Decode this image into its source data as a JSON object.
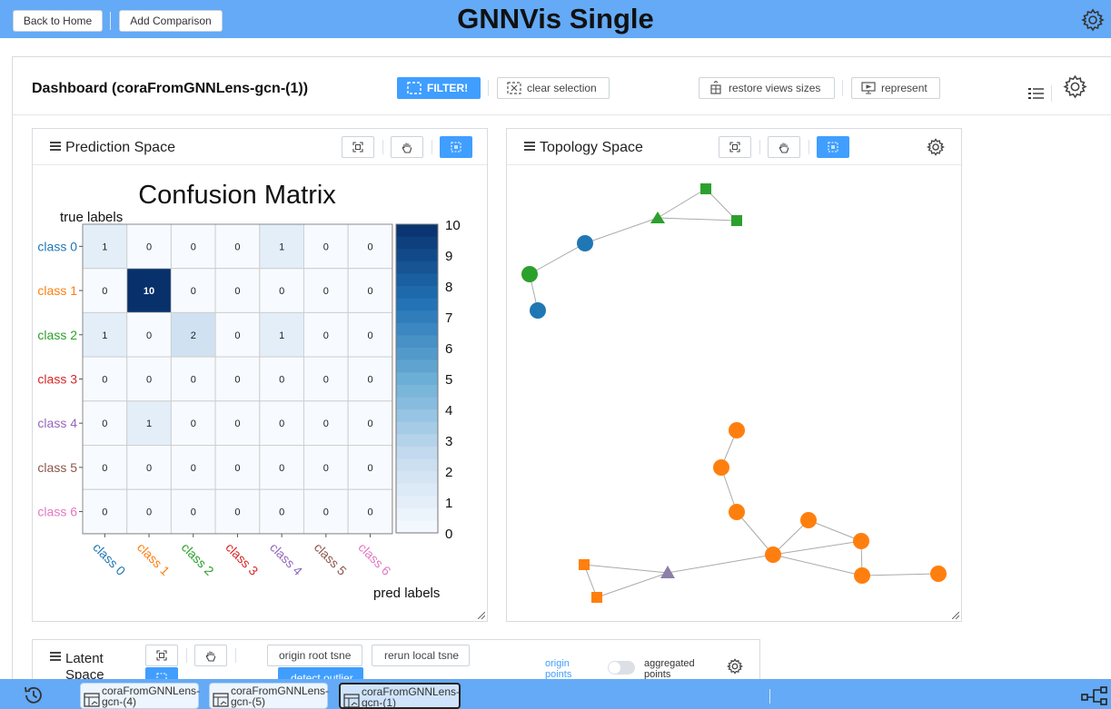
{
  "app": {
    "title": "GNNVis Single",
    "back_label": "Back to Home",
    "add_label": "Add Comparison"
  },
  "dashboard": {
    "title": "Dashboard (coraFromGNNLens-gcn-(1))",
    "filter_label": "FILTER!",
    "clear_label": "clear selection",
    "restore_label": "restore views sizes",
    "represent_label": "represent"
  },
  "prediction_panel": {
    "title": "Prediction Space"
  },
  "topology_panel": {
    "title": "Topology Space"
  },
  "latent_panel": {
    "title": "Latent Space",
    "origin_tsne_label": "origin root tsne",
    "rerun_tsne_label": "rerun local tsne",
    "detect_outlier_label": "detect outlier",
    "origin_points_label": "origin points",
    "aggregated_points_label": "aggregated points",
    "toggle_on": false
  },
  "bottom_tabs": [
    {
      "label": "coraFromGNNLens-gcn-(4)",
      "active": false
    },
    {
      "label": "coraFromGNNLens-gcn-(5)",
      "active": false
    },
    {
      "label": "coraFromGNNLens-gcn-(1)",
      "active": true
    }
  ],
  "colors": {
    "accent": "#409eff",
    "bar": "#64aaf6",
    "class0": "#1f77b4",
    "class1": "#ff7f0e",
    "class2": "#2ca02c",
    "class3": "#d62728",
    "class4": "#9467bd",
    "class5": "#8c564b",
    "class6": "#e377c2"
  },
  "chart_data": {
    "type": "heatmap",
    "title": "Confusion Matrix",
    "ylabel": "true labels",
    "xlabel": "pred labels",
    "rows": [
      "class 0",
      "class 1",
      "class 2",
      "class 3",
      "class 4",
      "class 5",
      "class 6"
    ],
    "cols": [
      "class 0",
      "class 1",
      "class 2",
      "class 3",
      "class 4",
      "class 5",
      "class 6"
    ],
    "values": [
      [
        1,
        0,
        0,
        0,
        1,
        0,
        0
      ],
      [
        0,
        10,
        0,
        0,
        0,
        0,
        0
      ],
      [
        1,
        0,
        2,
        0,
        1,
        0,
        0
      ],
      [
        0,
        0,
        0,
        0,
        0,
        0,
        0
      ],
      [
        0,
        1,
        0,
        0,
        0,
        0,
        0
      ],
      [
        0,
        0,
        0,
        0,
        0,
        0,
        0
      ],
      [
        0,
        0,
        0,
        0,
        0,
        0,
        0
      ]
    ],
    "colorbar_ticks": [
      "10",
      "9",
      "8",
      "7",
      "6",
      "5",
      "4",
      "3",
      "2",
      "1",
      "0"
    ],
    "colorbar_range": [
      0,
      10
    ]
  }
}
